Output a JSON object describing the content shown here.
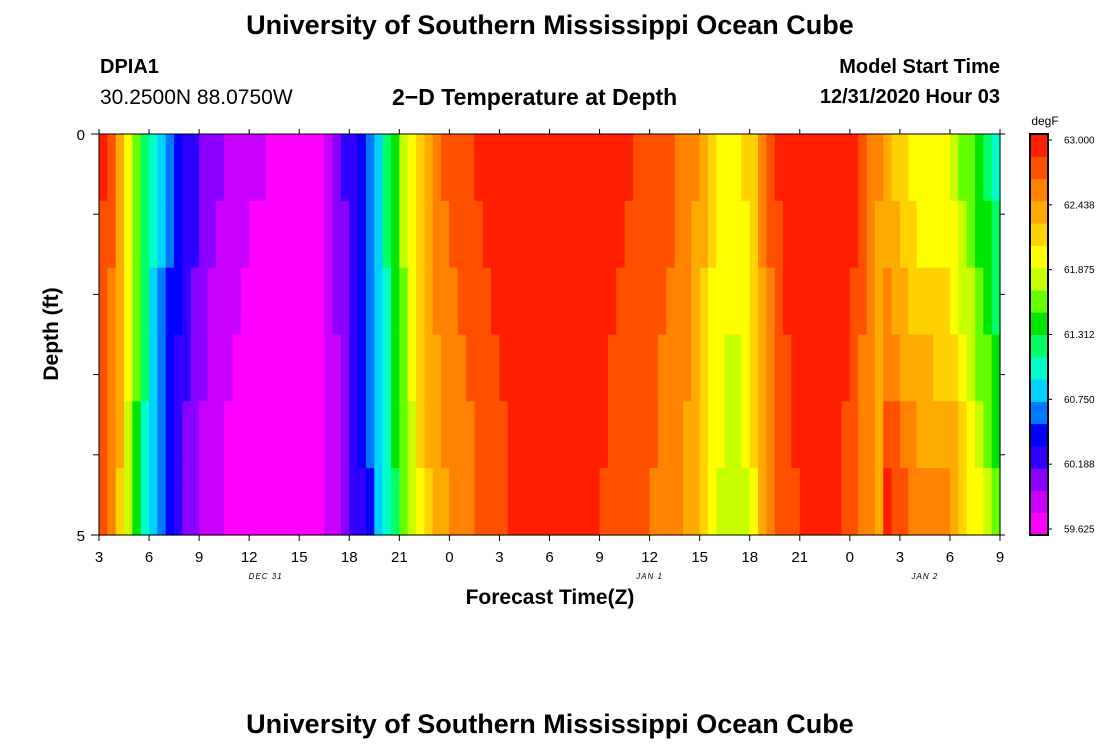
{
  "header": {
    "title": "University of Southern Mississippi Ocean Cube",
    "station_id": "DPIA1",
    "station_coords": "30.2500N 88.0750W",
    "plot_title": "2−D Temperature at Depth",
    "model_start_label": "Model Start Time",
    "model_start_value": "12/31/2020 Hour 03"
  },
  "footer": {
    "title": "University of Southern Mississippi Ocean Cube"
  },
  "chart_data": {
    "type": "heatmap",
    "title": "2−D Temperature at Depth",
    "xlabel": "Forecast Time(Z)",
    "ylabel": "Depth (ft)",
    "x_tick_labels": [
      "3",
      "6",
      "9",
      "12",
      "15",
      "18",
      "21",
      "0",
      "3",
      "6",
      "9",
      "12",
      "15",
      "18",
      "21",
      "0",
      "3",
      "6",
      "9"
    ],
    "date_labels": [
      {
        "text": "DEC 31",
        "tick_index": 3.33
      },
      {
        "text": "JAN 1",
        "tick_index": 11.0
      },
      {
        "text": "JAN 2",
        "tick_index": 16.5
      }
    ],
    "y_tick_labels": [
      "0",
      "5"
    ],
    "ylim": [
      0,
      5
    ],
    "hours_range": [
      3,
      57
    ],
    "depths_ft": [
      0,
      1,
      2,
      3,
      4,
      5
    ],
    "colorbar": {
      "unit": "degF",
      "min": 59.625,
      "max": 63.0,
      "tick_labels": [
        "63.000",
        "62.438",
        "61.875",
        "61.312",
        "60.750",
        "60.188",
        "59.625"
      ],
      "colors": [
        "#ff00ff",
        "#c800ff",
        "#8c00ff",
        "#3000ff",
        "#0000ff",
        "#0078ff",
        "#00d2ff",
        "#00ffc8",
        "#00ff64",
        "#00e600",
        "#64ff00",
        "#c8ff00",
        "#ffff00",
        "#ffd200",
        "#ffaa00",
        "#ff8200",
        "#ff5000",
        "#ff1e00"
      ]
    },
    "time_profile": [
      [
        3,
        62.8
      ],
      [
        4,
        62.5
      ],
      [
        5,
        61.7
      ],
      [
        6,
        61.0
      ],
      [
        7,
        60.6
      ],
      [
        8,
        60.3
      ],
      [
        9,
        60.1
      ],
      [
        10,
        59.95
      ],
      [
        11,
        59.85
      ],
      [
        12,
        59.78
      ],
      [
        13,
        59.72
      ],
      [
        14,
        59.68
      ],
      [
        15,
        59.63
      ],
      [
        16,
        59.65
      ],
      [
        17,
        59.95
      ],
      [
        18,
        60.2
      ],
      [
        19,
        60.5
      ],
      [
        20,
        60.95
      ],
      [
        21,
        61.5
      ],
      [
        22,
        62.05
      ],
      [
        23,
        62.4
      ],
      [
        24,
        62.55
      ],
      [
        25,
        62.65
      ],
      [
        26,
        62.75
      ],
      [
        27,
        62.85
      ],
      [
        28,
        62.93
      ],
      [
        29,
        62.97
      ],
      [
        30,
        62.98
      ],
      [
        31,
        62.98
      ],
      [
        32,
        62.97
      ],
      [
        33,
        62.9
      ],
      [
        34,
        62.8
      ],
      [
        35,
        62.72
      ],
      [
        36,
        62.68
      ],
      [
        37,
        62.6
      ],
      [
        38,
        62.5
      ],
      [
        39,
        62.3
      ],
      [
        40,
        61.95
      ],
      [
        41,
        61.85
      ],
      [
        42,
        62.0
      ],
      [
        43,
        62.5
      ],
      [
        44,
        62.8
      ],
      [
        45,
        62.93
      ],
      [
        46,
        62.97
      ],
      [
        47,
        62.95
      ],
      [
        48,
        62.85
      ],
      [
        49,
        62.6
      ],
      [
        50,
        62.3
      ],
      [
        51,
        62.05
      ],
      [
        52,
        61.9
      ],
      [
        53,
        61.85
      ],
      [
        54,
        61.8
      ],
      [
        55,
        61.5
      ],
      [
        56,
        61.2
      ],
      [
        57,
        60.9
      ]
    ],
    "depth_profile": [
      [
        0,
        0.1
      ],
      [
        1,
        0.05
      ],
      [
        2,
        0.0
      ],
      [
        3,
        -0.03
      ],
      [
        4,
        -0.05
      ],
      [
        5,
        -0.08
      ]
    ],
    "late_period_adjustment": {
      "start_hour": 50,
      "end_hour": 57,
      "per_ft_increase": 0.14
    }
  }
}
